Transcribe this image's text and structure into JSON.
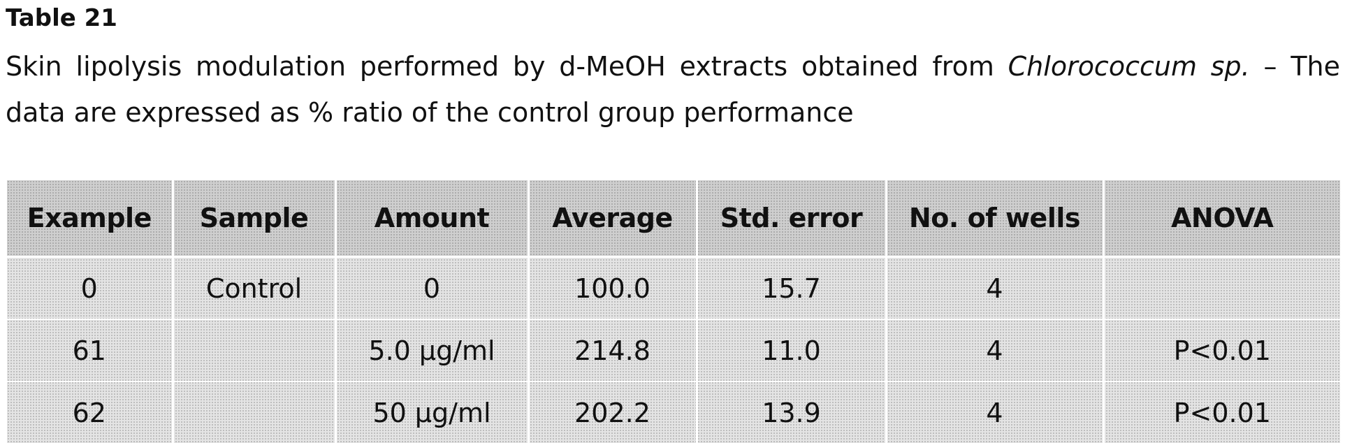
{
  "document": {
    "table_label": "Table 21",
    "caption_before": "Skin lipolysis modulation performed by d-MeOH extracts obtained from ",
    "caption_species": "Chlorococcum sp.",
    "caption_after": " – The data are expressed as % ratio of the control group performance"
  },
  "table": {
    "headers": [
      "Example",
      "Sample",
      "Amount",
      "Average",
      "Std. error",
      "No. of wells",
      "ANOVA"
    ],
    "rows": [
      [
        "0",
        "Control",
        "0",
        "100.0",
        "15.7",
        "4",
        ""
      ],
      [
        "61",
        "",
        "5.0 µg/ml",
        "214.8",
        "11.0",
        "4",
        "P<0.01"
      ],
      [
        "62",
        "",
        "50 µg/ml",
        "202.2",
        "13.9",
        "4",
        "P<0.01"
      ]
    ]
  }
}
